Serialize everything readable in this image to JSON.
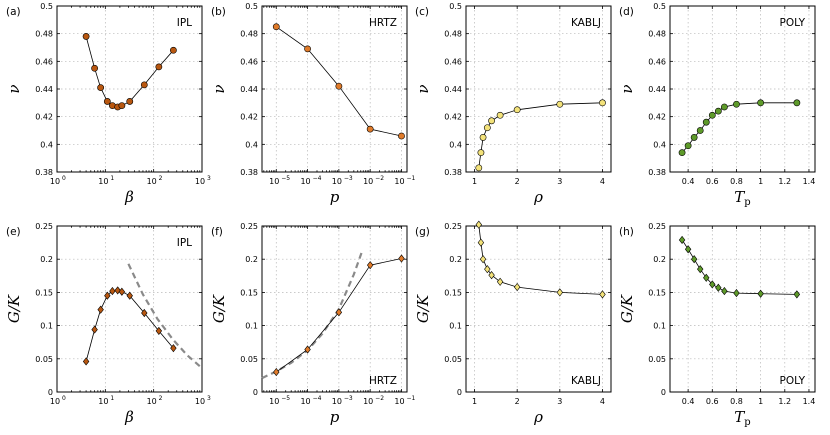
{
  "chart_data": [
    {
      "id": "a",
      "panel_label": "(a)",
      "system": "IPL",
      "system_position": "top-right",
      "type": "line",
      "marker": "circle",
      "color": "#b85710",
      "xscale": "log",
      "xlabel": "β",
      "ylabel": "ν",
      "xlim": [
        1,
        1000
      ],
      "ylim": [
        0.38,
        0.5
      ],
      "xticks": [
        {
          "v": 1,
          "label": "10"
        },
        {
          "v": 10,
          "label": "10"
        },
        {
          "v": 100,
          "label": "10"
        },
        {
          "v": 1000,
          "label": "10"
        }
      ],
      "xtick_exponents": [
        "0",
        "1",
        "2",
        "3"
      ],
      "yticks": [
        {
          "v": 0.38,
          "label": "0.38"
        },
        {
          "v": 0.4,
          "label": "0.4"
        },
        {
          "v": 0.42,
          "label": "0.42"
        },
        {
          "v": 0.44,
          "label": "0.44"
        },
        {
          "v": 0.46,
          "label": "0.46"
        },
        {
          "v": 0.48,
          "label": "0.48"
        },
        {
          "v": 0.5,
          "label": "0.5"
        }
      ],
      "x": [
        4,
        6,
        8,
        11,
        14,
        18,
        22,
        32,
        64,
        128,
        256
      ],
      "y": [
        0.478,
        0.455,
        0.441,
        0.431,
        0.428,
        0.427,
        0.428,
        0.431,
        0.443,
        0.456,
        0.468
      ]
    },
    {
      "id": "b",
      "panel_label": "(b)",
      "system": "HRTZ",
      "system_position": "top-right",
      "type": "line",
      "marker": "circle",
      "color": "#e07b2a",
      "xscale": "log",
      "xlabel": "p",
      "ylabel": "ν",
      "xlim": [
        3.5e-06,
        0.15
      ],
      "ylim": [
        0.38,
        0.5
      ],
      "xticks": [
        {
          "v": 1e-05,
          "label": "10"
        },
        {
          "v": 0.0001,
          "label": "10"
        },
        {
          "v": 0.001,
          "label": "10"
        },
        {
          "v": 0.01,
          "label": "10"
        },
        {
          "v": 0.1,
          "label": "10"
        }
      ],
      "xtick_exponents": [
        "−5",
        "−4",
        "−3",
        "−2",
        "−1"
      ],
      "yticks": [
        {
          "v": 0.38,
          "label": "0.38"
        },
        {
          "v": 0.4,
          "label": "0.4"
        },
        {
          "v": 0.42,
          "label": "0.42"
        },
        {
          "v": 0.44,
          "label": "0.44"
        },
        {
          "v": 0.46,
          "label": "0.46"
        },
        {
          "v": 0.48,
          "label": "0.48"
        },
        {
          "v": 0.5,
          "label": "0.5"
        }
      ],
      "x": [
        1e-05,
        0.0001,
        0.001,
        0.01,
        0.1
      ],
      "y": [
        0.485,
        0.469,
        0.442,
        0.411,
        0.406
      ]
    },
    {
      "id": "c",
      "panel_label": "(c)",
      "system": "KABLJ",
      "system_position": "top-right",
      "type": "line",
      "marker": "circle",
      "color": "#f3e27a",
      "xscale": "linear",
      "xlabel": "ρ",
      "ylabel": "ν",
      "xlim": [
        0.8,
        4.2
      ],
      "ylim": [
        0.38,
        0.5
      ],
      "xticks": [
        {
          "v": 1,
          "label": "1"
        },
        {
          "v": 2,
          "label": "2"
        },
        {
          "v": 3,
          "label": "3"
        },
        {
          "v": 4,
          "label": "4"
        }
      ],
      "yticks": [
        {
          "v": 0.38,
          "label": "0.38"
        },
        {
          "v": 0.4,
          "label": "0.4"
        },
        {
          "v": 0.42,
          "label": "0.42"
        },
        {
          "v": 0.44,
          "label": "0.44"
        },
        {
          "v": 0.46,
          "label": "0.46"
        },
        {
          "v": 0.48,
          "label": "0.48"
        },
        {
          "v": 0.5,
          "label": "0.5"
        }
      ],
      "x": [
        1.1,
        1.15,
        1.2,
        1.3,
        1.4,
        1.6,
        2.0,
        3.0,
        4.0
      ],
      "y": [
        0.383,
        0.394,
        0.405,
        0.412,
        0.417,
        0.421,
        0.425,
        0.429,
        0.43
      ]
    },
    {
      "id": "d",
      "panel_label": "(d)",
      "system": "POLY",
      "system_position": "top-right",
      "type": "line",
      "marker": "circle",
      "color": "#5e9a2a",
      "xscale": "linear",
      "xlabel": "T",
      "xlabel_sub": "p",
      "ylabel": "ν",
      "xlim": [
        0.25,
        1.45
      ],
      "ylim": [
        0.38,
        0.5
      ],
      "xticks": [
        {
          "v": 0.4,
          "label": "0.4"
        },
        {
          "v": 0.6,
          "label": "0.6"
        },
        {
          "v": 0.8,
          "label": "0.8"
        },
        {
          "v": 1.0,
          "label": "1"
        },
        {
          "v": 1.2,
          "label": "1.2"
        },
        {
          "v": 1.4,
          "label": "1.4"
        }
      ],
      "yticks": [
        {
          "v": 0.38,
          "label": "0.38"
        },
        {
          "v": 0.4,
          "label": "0.4"
        },
        {
          "v": 0.42,
          "label": "0.42"
        },
        {
          "v": 0.44,
          "label": "0.44"
        },
        {
          "v": 0.46,
          "label": "0.46"
        },
        {
          "v": 0.48,
          "label": "0.48"
        },
        {
          "v": 0.5,
          "label": "0.5"
        }
      ],
      "x": [
        0.35,
        0.4,
        0.45,
        0.5,
        0.55,
        0.6,
        0.65,
        0.7,
        0.8,
        1.0,
        1.3
      ],
      "y": [
        0.394,
        0.399,
        0.405,
        0.41,
        0.416,
        0.421,
        0.424,
        0.427,
        0.429,
        0.43,
        0.43
      ]
    },
    {
      "id": "e",
      "panel_label": "(e)",
      "system": "IPL",
      "system_position": "top-right",
      "type": "line",
      "marker": "diamond",
      "color": "#b85710",
      "xscale": "log",
      "xlabel": "β",
      "ylabel": "G/K",
      "xlim": [
        1,
        1000
      ],
      "ylim": [
        0,
        0.25
      ],
      "xticks": [
        {
          "v": 1,
          "label": "10"
        },
        {
          "v": 10,
          "label": "10"
        },
        {
          "v": 100,
          "label": "10"
        },
        {
          "v": 1000,
          "label": "10"
        }
      ],
      "xtick_exponents": [
        "0",
        "1",
        "2",
        "3"
      ],
      "yticks": [
        {
          "v": 0,
          "label": "0"
        },
        {
          "v": 0.05,
          "label": "0.05"
        },
        {
          "v": 0.1,
          "label": "0.1"
        },
        {
          "v": 0.15,
          "label": "0.15"
        },
        {
          "v": 0.2,
          "label": "0.2"
        },
        {
          "v": 0.25,
          "label": "0.25"
        }
      ],
      "x": [
        4,
        6,
        8,
        11,
        14,
        18,
        22,
        32,
        64,
        128,
        256
      ],
      "y": [
        0.046,
        0.094,
        0.124,
        0.145,
        0.152,
        0.153,
        0.151,
        0.145,
        0.119,
        0.092,
        0.066
      ],
      "fit": {
        "x": [
          30,
          60,
          120,
          250,
          500,
          1000
        ],
        "y": [
          0.193,
          0.147,
          0.11,
          0.079,
          0.055,
          0.036
        ]
      }
    },
    {
      "id": "f",
      "panel_label": "(f)",
      "system": "HRTZ",
      "system_position": "bottom-right",
      "type": "line",
      "marker": "diamond",
      "color": "#e07b2a",
      "xscale": "log",
      "xlabel": "p",
      "ylabel": "G/K",
      "xlim": [
        3.5e-06,
        0.15
      ],
      "ylim": [
        0,
        0.25
      ],
      "xticks": [
        {
          "v": 1e-05,
          "label": "10"
        },
        {
          "v": 0.0001,
          "label": "10"
        },
        {
          "v": 0.001,
          "label": "10"
        },
        {
          "v": 0.01,
          "label": "10"
        },
        {
          "v": 0.1,
          "label": "10"
        }
      ],
      "xtick_exponents": [
        "−5",
        "−4",
        "−3",
        "−2",
        "−1"
      ],
      "yticks": [
        {
          "v": 0,
          "label": "0"
        },
        {
          "v": 0.05,
          "label": "0.05"
        },
        {
          "v": 0.1,
          "label": "0.1"
        },
        {
          "v": 0.15,
          "label": "0.15"
        },
        {
          "v": 0.2,
          "label": "0.2"
        },
        {
          "v": 0.25,
          "label": "0.25"
        }
      ],
      "x": [
        1e-05,
        0.0001,
        0.001,
        0.01,
        0.1
      ],
      "y": [
        0.03,
        0.064,
        0.12,
        0.191,
        0.201
      ],
      "fit": {
        "x": [
          3.5e-06,
          1e-05,
          3e-05,
          0.0001,
          0.0003,
          0.001,
          0.003,
          0.0055
        ],
        "y": [
          0.021,
          0.031,
          0.044,
          0.063,
          0.088,
          0.125,
          0.177,
          0.212
        ]
      }
    },
    {
      "id": "g",
      "panel_label": "(g)",
      "system": "KABLJ",
      "system_position": "bottom-right",
      "type": "line",
      "marker": "diamond",
      "color": "#f3e27a",
      "xscale": "linear",
      "xlabel": "ρ",
      "ylabel": "G/K",
      "xlim": [
        0.8,
        4.2
      ],
      "ylim": [
        0,
        0.25
      ],
      "xticks": [
        {
          "v": 1,
          "label": "1"
        },
        {
          "v": 2,
          "label": "2"
        },
        {
          "v": 3,
          "label": "3"
        },
        {
          "v": 4,
          "label": "4"
        }
      ],
      "yticks": [
        {
          "v": 0,
          "label": "0"
        },
        {
          "v": 0.05,
          "label": "0.05"
        },
        {
          "v": 0.1,
          "label": "0.1"
        },
        {
          "v": 0.15,
          "label": "0.15"
        },
        {
          "v": 0.2,
          "label": "0.2"
        },
        {
          "v": 0.25,
          "label": "0.25"
        }
      ],
      "x": [
        1.1,
        1.15,
        1.2,
        1.3,
        1.4,
        1.6,
        2.0,
        3.0,
        4.0
      ],
      "y": [
        0.252,
        0.225,
        0.2,
        0.185,
        0.176,
        0.166,
        0.158,
        0.15,
        0.147
      ]
    },
    {
      "id": "h",
      "panel_label": "(h)",
      "system": "POLY",
      "system_position": "bottom-right",
      "type": "line",
      "marker": "diamond",
      "color": "#5e9a2a",
      "xscale": "linear",
      "xlabel": "T",
      "xlabel_sub": "p",
      "ylabel": "G/K",
      "xlim": [
        0.25,
        1.45
      ],
      "ylim": [
        0,
        0.25
      ],
      "xticks": [
        {
          "v": 0.4,
          "label": "0.4"
        },
        {
          "v": 0.6,
          "label": "0.6"
        },
        {
          "v": 0.8,
          "label": "0.8"
        },
        {
          "v": 1.0,
          "label": "1"
        },
        {
          "v": 1.2,
          "label": "1.2"
        },
        {
          "v": 1.4,
          "label": "1.4"
        }
      ],
      "yticks": [
        {
          "v": 0,
          "label": "0"
        },
        {
          "v": 0.05,
          "label": "0.05"
        },
        {
          "v": 0.1,
          "label": "0.1"
        },
        {
          "v": 0.15,
          "label": "0.15"
        },
        {
          "v": 0.2,
          "label": "0.2"
        },
        {
          "v": 0.25,
          "label": "0.25"
        }
      ],
      "x": [
        0.35,
        0.4,
        0.45,
        0.5,
        0.55,
        0.6,
        0.65,
        0.7,
        0.8,
        1.0,
        1.3
      ],
      "y": [
        0.229,
        0.215,
        0.2,
        0.185,
        0.172,
        0.162,
        0.157,
        0.152,
        0.149,
        0.148,
        0.147
      ]
    }
  ]
}
